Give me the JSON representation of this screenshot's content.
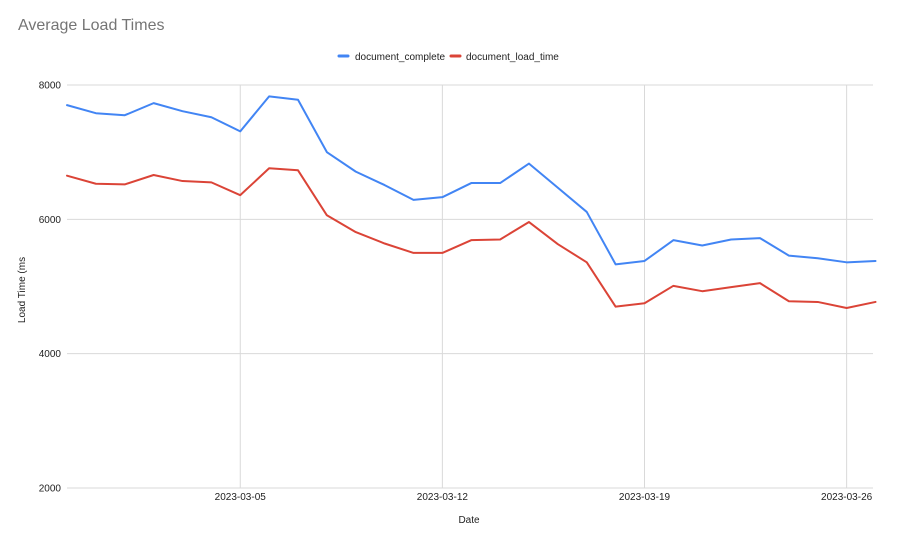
{
  "chart_data": {
    "type": "line",
    "title": "Average Load Times",
    "xlabel": "Date",
    "ylabel": "Load Time (ms",
    "ylim": [
      2000,
      8000
    ],
    "y_ticks": [
      "2000",
      "4000",
      "6000",
      "8000"
    ],
    "x_ticks": [
      "2023-03-05",
      "2023-03-12",
      "2023-03-19",
      "2023-03-26"
    ],
    "grid": true,
    "legend_position": "top-center",
    "x": [
      "2023-02-27",
      "2023-02-28",
      "2023-03-01",
      "2023-03-02",
      "2023-03-03",
      "2023-03-04",
      "2023-03-05",
      "2023-03-06",
      "2023-03-07",
      "2023-03-08",
      "2023-03-09",
      "2023-03-10",
      "2023-03-11",
      "2023-03-12",
      "2023-03-13",
      "2023-03-14",
      "2023-03-15",
      "2023-03-16",
      "2023-03-17",
      "2023-03-18",
      "2023-03-19",
      "2023-03-20",
      "2023-03-21",
      "2023-03-22",
      "2023-03-23",
      "2023-03-24",
      "2023-03-25",
      "2023-03-26",
      "2023-03-27"
    ],
    "series": [
      {
        "name": "document_complete",
        "color": "#4285f4",
        "values": [
          7700,
          7580,
          7550,
          7730,
          7610,
          7520,
          7310,
          7830,
          7780,
          7000,
          6710,
          6510,
          6290,
          6330,
          6540,
          6540,
          6830,
          6470,
          6110,
          5330,
          5380,
          5690,
          5610,
          5700,
          5720,
          5460,
          5420,
          5360,
          5380
        ]
      },
      {
        "name": "document_load_time",
        "color": "#db4437",
        "values": [
          6650,
          6530,
          6520,
          6660,
          6570,
          6550,
          6360,
          6760,
          6730,
          6060,
          5810,
          5640,
          5500,
          5500,
          5690,
          5700,
          5960,
          5630,
          5360,
          4700,
          4750,
          5010,
          4930,
          4990,
          5050,
          4780,
          4770,
          4680,
          4770
        ]
      }
    ]
  }
}
